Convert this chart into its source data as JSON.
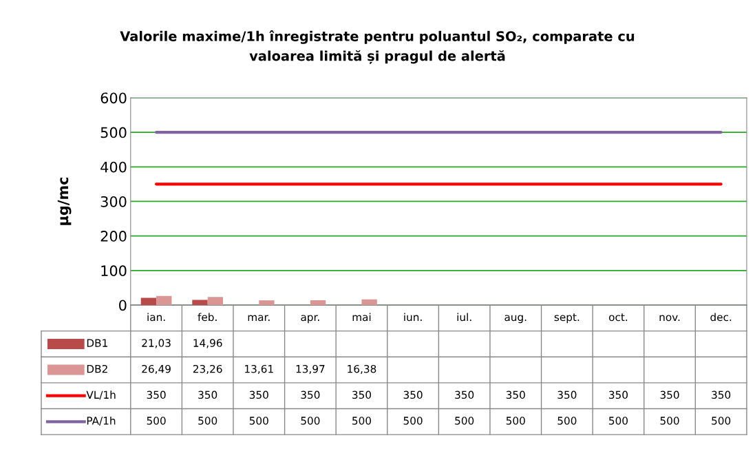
{
  "chart_data": {
    "type": "bar",
    "title": "Valorile maxime/1h înregistrate pentru poluantul SO₂, comparate cu\nvaloarea limită și pragul de alertă",
    "ylabel": "µg/mc",
    "categories": [
      "ian.",
      "feb.",
      "mar.",
      "apr.",
      "mai",
      "iun.",
      "iul.",
      "aug.",
      "sept.",
      "oct.",
      "nov.",
      "dec."
    ],
    "series": [
      {
        "name": "DB1",
        "color": "#b84a4a",
        "values": [
          21.03,
          14.96,
          null,
          null,
          null,
          null,
          null,
          null,
          null,
          null,
          null,
          null
        ],
        "value_labels": [
          "21,03",
          "14,96",
          null,
          null,
          null,
          null,
          null,
          null,
          null,
          null,
          null,
          null
        ]
      },
      {
        "name": "DB2",
        "color": "#d99694",
        "values": [
          26.49,
          23.26,
          13.61,
          13.97,
          16.38,
          null,
          null,
          null,
          null,
          null,
          null,
          null
        ],
        "value_labels": [
          "26,49",
          "23,26",
          "13,61",
          "13,97",
          "16,38",
          null,
          null,
          null,
          null,
          null,
          null,
          null
        ]
      },
      {
        "name": "VL/1h",
        "type": "line",
        "color": "#ff0000",
        "values": [
          350,
          350,
          350,
          350,
          350,
          350,
          350,
          350,
          350,
          350,
          350,
          350
        ],
        "value_labels": [
          "350",
          "350",
          "350",
          "350",
          "350",
          "350",
          "350",
          "350",
          "350",
          "350",
          "350",
          "350"
        ]
      },
      {
        "name": "PA/1h",
        "type": "line",
        "color": "#8064a2",
        "values": [
          500,
          500,
          500,
          500,
          500,
          500,
          500,
          500,
          500,
          500,
          500,
          500
        ],
        "value_labels": [
          "500",
          "500",
          "500",
          "500",
          "500",
          "500",
          "500",
          "500",
          "500",
          "500",
          "500",
          "500"
        ]
      }
    ],
    "ylim": [
      0,
      600
    ],
    "yticks": [
      0,
      100,
      200,
      300,
      400,
      500,
      600
    ],
    "grid": "y",
    "legend": "bottom left"
  }
}
